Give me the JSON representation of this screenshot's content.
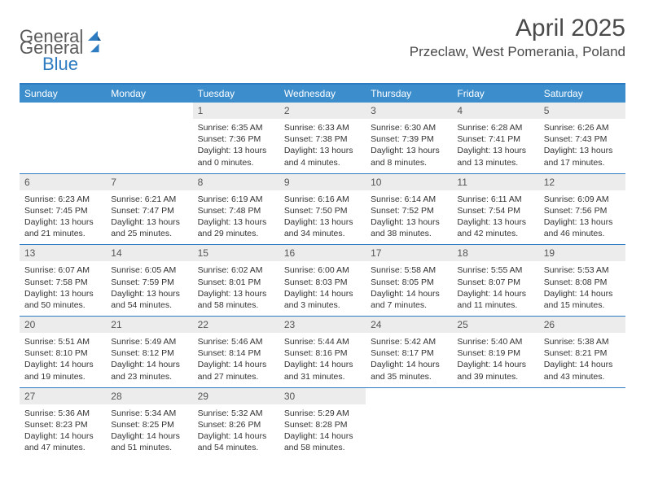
{
  "logo": {
    "part1": "General",
    "part2": "Blue"
  },
  "title": "April 2025",
  "location": "Przeclaw, West Pomerania, Poland",
  "theme": {
    "header_bg": "#3c8dcc",
    "border_color": "#2d7bc0",
    "daynum_bg": "#ececec",
    "text_color": "#333333"
  },
  "days_of_week": [
    "Sunday",
    "Monday",
    "Tuesday",
    "Wednesday",
    "Thursday",
    "Friday",
    "Saturday"
  ],
  "weeks": [
    [
      {
        "n": "",
        "sunrise": "",
        "sunset": "",
        "daylight": ""
      },
      {
        "n": "",
        "sunrise": "",
        "sunset": "",
        "daylight": ""
      },
      {
        "n": "1",
        "sunrise": "Sunrise: 6:35 AM",
        "sunset": "Sunset: 7:36 PM",
        "daylight": "Daylight: 13 hours and 0 minutes."
      },
      {
        "n": "2",
        "sunrise": "Sunrise: 6:33 AM",
        "sunset": "Sunset: 7:38 PM",
        "daylight": "Daylight: 13 hours and 4 minutes."
      },
      {
        "n": "3",
        "sunrise": "Sunrise: 6:30 AM",
        "sunset": "Sunset: 7:39 PM",
        "daylight": "Daylight: 13 hours and 8 minutes."
      },
      {
        "n": "4",
        "sunrise": "Sunrise: 6:28 AM",
        "sunset": "Sunset: 7:41 PM",
        "daylight": "Daylight: 13 hours and 13 minutes."
      },
      {
        "n": "5",
        "sunrise": "Sunrise: 6:26 AM",
        "sunset": "Sunset: 7:43 PM",
        "daylight": "Daylight: 13 hours and 17 minutes."
      }
    ],
    [
      {
        "n": "6",
        "sunrise": "Sunrise: 6:23 AM",
        "sunset": "Sunset: 7:45 PM",
        "daylight": "Daylight: 13 hours and 21 minutes."
      },
      {
        "n": "7",
        "sunrise": "Sunrise: 6:21 AM",
        "sunset": "Sunset: 7:47 PM",
        "daylight": "Daylight: 13 hours and 25 minutes."
      },
      {
        "n": "8",
        "sunrise": "Sunrise: 6:19 AM",
        "sunset": "Sunset: 7:48 PM",
        "daylight": "Daylight: 13 hours and 29 minutes."
      },
      {
        "n": "9",
        "sunrise": "Sunrise: 6:16 AM",
        "sunset": "Sunset: 7:50 PM",
        "daylight": "Daylight: 13 hours and 34 minutes."
      },
      {
        "n": "10",
        "sunrise": "Sunrise: 6:14 AM",
        "sunset": "Sunset: 7:52 PM",
        "daylight": "Daylight: 13 hours and 38 minutes."
      },
      {
        "n": "11",
        "sunrise": "Sunrise: 6:11 AM",
        "sunset": "Sunset: 7:54 PM",
        "daylight": "Daylight: 13 hours and 42 minutes."
      },
      {
        "n": "12",
        "sunrise": "Sunrise: 6:09 AM",
        "sunset": "Sunset: 7:56 PM",
        "daylight": "Daylight: 13 hours and 46 minutes."
      }
    ],
    [
      {
        "n": "13",
        "sunrise": "Sunrise: 6:07 AM",
        "sunset": "Sunset: 7:58 PM",
        "daylight": "Daylight: 13 hours and 50 minutes."
      },
      {
        "n": "14",
        "sunrise": "Sunrise: 6:05 AM",
        "sunset": "Sunset: 7:59 PM",
        "daylight": "Daylight: 13 hours and 54 minutes."
      },
      {
        "n": "15",
        "sunrise": "Sunrise: 6:02 AM",
        "sunset": "Sunset: 8:01 PM",
        "daylight": "Daylight: 13 hours and 58 minutes."
      },
      {
        "n": "16",
        "sunrise": "Sunrise: 6:00 AM",
        "sunset": "Sunset: 8:03 PM",
        "daylight": "Daylight: 14 hours and 3 minutes."
      },
      {
        "n": "17",
        "sunrise": "Sunrise: 5:58 AM",
        "sunset": "Sunset: 8:05 PM",
        "daylight": "Daylight: 14 hours and 7 minutes."
      },
      {
        "n": "18",
        "sunrise": "Sunrise: 5:55 AM",
        "sunset": "Sunset: 8:07 PM",
        "daylight": "Daylight: 14 hours and 11 minutes."
      },
      {
        "n": "19",
        "sunrise": "Sunrise: 5:53 AM",
        "sunset": "Sunset: 8:08 PM",
        "daylight": "Daylight: 14 hours and 15 minutes."
      }
    ],
    [
      {
        "n": "20",
        "sunrise": "Sunrise: 5:51 AM",
        "sunset": "Sunset: 8:10 PM",
        "daylight": "Daylight: 14 hours and 19 minutes."
      },
      {
        "n": "21",
        "sunrise": "Sunrise: 5:49 AM",
        "sunset": "Sunset: 8:12 PM",
        "daylight": "Daylight: 14 hours and 23 minutes."
      },
      {
        "n": "22",
        "sunrise": "Sunrise: 5:46 AM",
        "sunset": "Sunset: 8:14 PM",
        "daylight": "Daylight: 14 hours and 27 minutes."
      },
      {
        "n": "23",
        "sunrise": "Sunrise: 5:44 AM",
        "sunset": "Sunset: 8:16 PM",
        "daylight": "Daylight: 14 hours and 31 minutes."
      },
      {
        "n": "24",
        "sunrise": "Sunrise: 5:42 AM",
        "sunset": "Sunset: 8:17 PM",
        "daylight": "Daylight: 14 hours and 35 minutes."
      },
      {
        "n": "25",
        "sunrise": "Sunrise: 5:40 AM",
        "sunset": "Sunset: 8:19 PM",
        "daylight": "Daylight: 14 hours and 39 minutes."
      },
      {
        "n": "26",
        "sunrise": "Sunrise: 5:38 AM",
        "sunset": "Sunset: 8:21 PM",
        "daylight": "Daylight: 14 hours and 43 minutes."
      }
    ],
    [
      {
        "n": "27",
        "sunrise": "Sunrise: 5:36 AM",
        "sunset": "Sunset: 8:23 PM",
        "daylight": "Daylight: 14 hours and 47 minutes."
      },
      {
        "n": "28",
        "sunrise": "Sunrise: 5:34 AM",
        "sunset": "Sunset: 8:25 PM",
        "daylight": "Daylight: 14 hours and 51 minutes."
      },
      {
        "n": "29",
        "sunrise": "Sunrise: 5:32 AM",
        "sunset": "Sunset: 8:26 PM",
        "daylight": "Daylight: 14 hours and 54 minutes."
      },
      {
        "n": "30",
        "sunrise": "Sunrise: 5:29 AM",
        "sunset": "Sunset: 8:28 PM",
        "daylight": "Daylight: 14 hours and 58 minutes."
      },
      {
        "n": "",
        "sunrise": "",
        "sunset": "",
        "daylight": ""
      },
      {
        "n": "",
        "sunrise": "",
        "sunset": "",
        "daylight": ""
      },
      {
        "n": "",
        "sunrise": "",
        "sunset": "",
        "daylight": ""
      }
    ]
  ]
}
